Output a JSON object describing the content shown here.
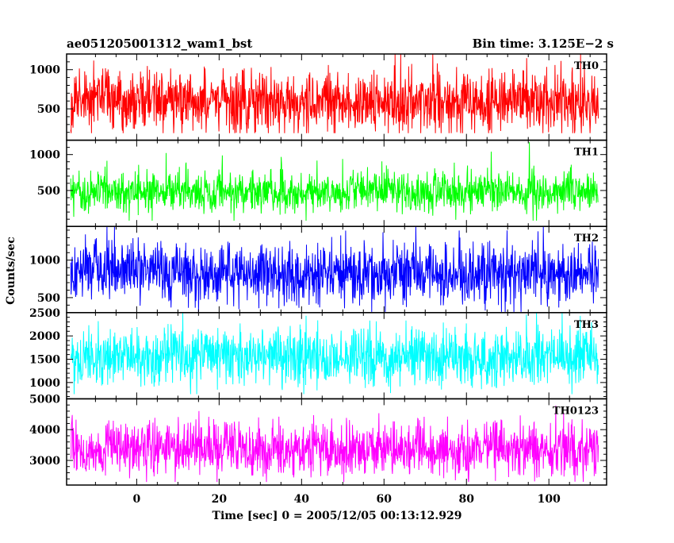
{
  "header": {
    "title": "ae051205001312_wam1_bst",
    "bin_time": "Bin time: 3.125E−2 s"
  },
  "chart_data": {
    "type": "line",
    "xlabel": "Time [sec] 0 = 2005/12/05 00:13:12.929",
    "ylabel": "Counts/sec",
    "xlim": [
      -17,
      114
    ],
    "x_ticks": [
      0,
      20,
      40,
      60,
      80,
      100
    ],
    "x_tick_labels": [
      "0",
      "20",
      "40",
      "60",
      "80",
      "100"
    ],
    "x_data_range": [
      -16,
      112
    ],
    "bin_time_s": 0.03125,
    "grid": false,
    "panels": [
      {
        "name": "TH0",
        "color": "#ff0000",
        "ylim": [
          100,
          1200
        ],
        "yticks": [
          500,
          1000
        ],
        "ytick_labels": [
          "500",
          "1000"
        ],
        "base": 580,
        "noise": 190,
        "spike": 520,
        "min": 190,
        "max": 1200,
        "shift": 0
      },
      {
        "name": "TH1",
        "color": "#00ff00",
        "ylim": [
          0,
          1200
        ],
        "yticks": [
          500,
          1000
        ],
        "ytick_labels": [
          "500",
          "1000"
        ],
        "base": 480,
        "noise": 130,
        "spike": 470,
        "min": 80,
        "max": 1200,
        "shift": 0
      },
      {
        "name": "TH2",
        "color": "#0000ff",
        "ylim": [
          300,
          1450
        ],
        "yticks": [
          500,
          1000
        ],
        "ytick_labels": [
          "500",
          "1000"
        ],
        "base": 830,
        "noise": 200,
        "spike": 480,
        "min": 310,
        "max": 1450,
        "shift": 0
      },
      {
        "name": "TH3",
        "color": "#00ffff",
        "ylim": [
          650,
          2500
        ],
        "yticks": [
          1000,
          1500,
          2000,
          2500
        ],
        "ytick_labels": [
          "1000",
          "1500",
          "2000",
          "2500"
        ],
        "base": 1540,
        "noise": 300,
        "spike": 720,
        "min": 750,
        "max": 2500,
        "shift": 0
      },
      {
        "name": "TH0123",
        "color": "#ff00ff",
        "ylim": [
          2200,
          5000
        ],
        "yticks": [
          3000,
          4000,
          5000
        ],
        "ytick_labels": [
          "3000",
          "4000",
          "5000"
        ],
        "base": 3380,
        "noise": 420,
        "spike": 1050,
        "min": 2300,
        "max": 5000,
        "shift": 0
      }
    ]
  }
}
